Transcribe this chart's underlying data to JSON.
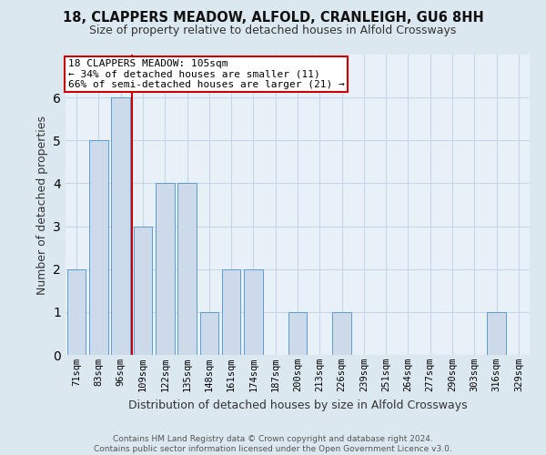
{
  "title": "18, CLAPPERS MEADOW, ALFOLD, CRANLEIGH, GU6 8HH",
  "subtitle": "Size of property relative to detached houses in Alfold Crossways",
  "xlabel": "Distribution of detached houses by size in Alfold Crossways",
  "ylabel": "Number of detached properties",
  "footer_line1": "Contains HM Land Registry data © Crown copyright and database right 2024.",
  "footer_line2": "Contains public sector information licensed under the Open Government Licence v3.0.",
  "categories": [
    "71sqm",
    "83sqm",
    "96sqm",
    "109sqm",
    "122sqm",
    "135sqm",
    "148sqm",
    "161sqm",
    "174sqm",
    "187sqm",
    "200sqm",
    "213sqm",
    "226sqm",
    "239sqm",
    "251sqm",
    "264sqm",
    "277sqm",
    "290sqm",
    "303sqm",
    "316sqm",
    "329sqm"
  ],
  "values": [
    2,
    5,
    6,
    3,
    4,
    4,
    1,
    2,
    2,
    0,
    1,
    0,
    1,
    0,
    0,
    0,
    0,
    0,
    0,
    1,
    0
  ],
  "bar_color": "#ccdaea",
  "bar_edgecolor": "#5b9bd5",
  "reference_line_x": 2.5,
  "reference_line_color": "#cc0000",
  "annotation_title": "18 CLAPPERS MEADOW: 105sqm",
  "annotation_line1": "← 34% of detached houses are smaller (11)",
  "annotation_line2": "66% of semi-detached houses are larger (21) →",
  "annotation_box_edgecolor": "#cc0000",
  "annotation_box_facecolor": "#ffffff",
  "ylim": [
    0,
    7
  ],
  "yticks": [
    0,
    1,
    2,
    3,
    4,
    5,
    6,
    7
  ],
  "grid_color": "#c8d4e8",
  "bg_color": "#dce8f0",
  "plot_bg_color": "#e8f0f8",
  "title_fontsize": 10.5,
  "subtitle_fontsize": 9,
  "tick_fontsize": 7.5,
  "ylabel_fontsize": 9,
  "xlabel_fontsize": 9,
  "footer_fontsize": 6.5,
  "annotation_fontsize": 8
}
